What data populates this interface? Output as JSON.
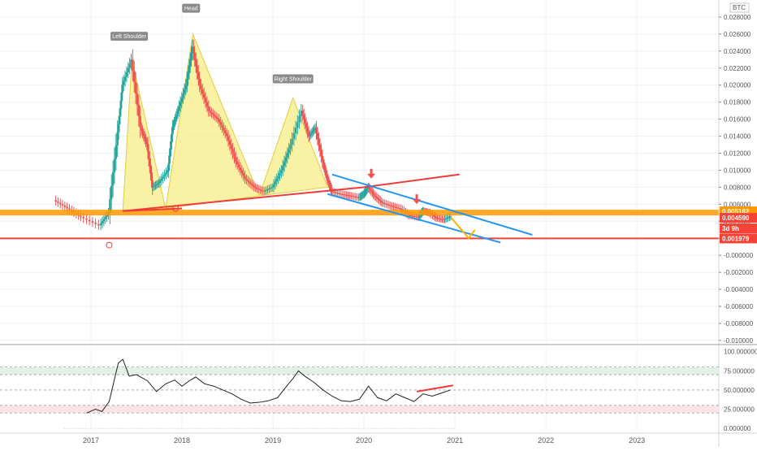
{
  "currency_label": "BTC",
  "colors": {
    "candle_up": "#26a69a",
    "candle_down": "#ef5350",
    "pattern_fill": "#f7ec84",
    "pattern_stroke": "#e0cf3f",
    "neckline": "#ef3b3b",
    "channel": "#2196f3",
    "support_orange": "#ff9800",
    "support_red": "#f44336",
    "rsi_line": "#222222",
    "projection": "#ffb300",
    "grid": "#eef0f3"
  },
  "annotations": {
    "left_shoulder": "Left Shoulder",
    "head": "Head",
    "right_shoulder": "Right Shoulder"
  },
  "price_badges": {
    "orange": "0.005162",
    "current": "0.004590",
    "countdown": "3d 9h",
    "red": "0.001979"
  },
  "chart_data": [
    {
      "type": "line",
      "title": "",
      "xlabel": "",
      "ylabel": "",
      "x_ticks": [
        "2017",
        "2018",
        "2019",
        "2020",
        "2021",
        "2022",
        "2023"
      ],
      "y_ticks": [
        "0.028000",
        "0.026000",
        "0.024000",
        "0.022000",
        "0.020000",
        "0.018000",
        "0.016000",
        "0.014000",
        "0.012000",
        "0.010000",
        "0.008000",
        "0.006000",
        "0.004000",
        "0.002000",
        "-0.000000",
        "-0.002000",
        "-0.004000",
        "-0.006000",
        "-0.008000",
        "-0.010000"
      ],
      "ylim": [
        -0.0103,
        0.03
      ],
      "xlim": [
        2016.0,
        2023.9
      ],
      "grid": true,
      "series": [
        {
          "values": [
            [
              2016.6,
              0.0065
            ],
            [
              2016.75,
              0.0055
            ],
            [
              2016.9,
              0.0045
            ],
            [
              2017.1,
              0.0035
            ],
            [
              2017.2,
              0.005
            ],
            [
              2017.3,
              0.0145
            ],
            [
              2017.35,
              0.02
            ],
            [
              2017.45,
              0.023
            ],
            [
              2017.55,
              0.015
            ],
            [
              2017.62,
              0.013
            ],
            [
              2017.68,
              0.008
            ],
            [
              2017.75,
              0.0085
            ],
            [
              2017.85,
              0.01
            ],
            [
              2017.9,
              0.015
            ],
            [
              2017.96,
              0.017
            ],
            [
              2018.05,
              0.02
            ],
            [
              2018.12,
              0.0245
            ],
            [
              2018.2,
              0.02
            ],
            [
              2018.3,
              0.017
            ],
            [
              2018.4,
              0.016
            ],
            [
              2018.5,
              0.014
            ],
            [
              2018.6,
              0.011
            ],
            [
              2018.7,
              0.009
            ],
            [
              2018.8,
              0.008
            ],
            [
              2018.9,
              0.0075
            ],
            [
              2019.0,
              0.008
            ],
            [
              2019.1,
              0.01
            ],
            [
              2019.2,
              0.013
            ],
            [
              2019.32,
              0.017
            ],
            [
              2019.4,
              0.014
            ],
            [
              2019.47,
              0.015
            ],
            [
              2019.55,
              0.011
            ],
            [
              2019.6,
              0.009
            ],
            [
              2019.65,
              0.0075
            ],
            [
              2019.75,
              0.0072
            ],
            [
              2019.85,
              0.007
            ],
            [
              2019.95,
              0.0068
            ],
            [
              2020.0,
              0.0072
            ],
            [
              2020.05,
              0.008
            ],
            [
              2020.12,
              0.007
            ],
            [
              2020.2,
              0.0062
            ],
            [
              2020.3,
              0.0058
            ],
            [
              2020.4,
              0.0055
            ],
            [
              2020.5,
              0.0047
            ],
            [
              2020.6,
              0.0045
            ],
            [
              2020.65,
              0.0052
            ],
            [
              2020.72,
              0.005
            ],
            [
              2020.8,
              0.0044
            ],
            [
              2020.88,
              0.0042
            ],
            [
              2020.96,
              0.0046
            ]
          ]
        }
      ],
      "levels": {
        "support_orange": 0.005162,
        "current": 0.00459,
        "support_red": 0.001979
      },
      "neckline": [
        [
          2017.35,
          0.0052
        ],
        [
          2018.0,
          0.0055
        ],
        [
          2020.0,
          0.008
        ],
        [
          2021.05,
          0.0095
        ]
      ],
      "channel_upper": [
        [
          2019.65,
          0.0095
        ],
        [
          2021.85,
          0.0024
        ]
      ],
      "channel_lower": [
        [
          2019.6,
          0.0072
        ],
        [
          2021.5,
          0.0015
        ]
      ],
      "projection": [
        [
          2020.96,
          0.0044
        ],
        [
          2021.15,
          0.002
        ],
        [
          2021.22,
          0.003
        ]
      ]
    },
    {
      "type": "line",
      "title": "",
      "x_ticks": [
        "2017",
        "2018",
        "2019",
        "2020",
        "2021",
        "2022",
        "2023"
      ],
      "y_ticks": [
        "100.000000",
        "75.000000",
        "50.000000",
        "25.000000",
        "0.000000"
      ],
      "ylim": [
        -3,
        105
      ],
      "xlim": [
        2016.0,
        2023.9
      ],
      "bands": {
        "overbought": [
          70,
          80
        ],
        "oversold": [
          20,
          30
        ]
      },
      "series": [
        {
          "values": [
            [
              2016.95,
              20
            ],
            [
              2017.05,
              25
            ],
            [
              2017.12,
              22
            ],
            [
              2017.2,
              35
            ],
            [
              2017.3,
              85
            ],
            [
              2017.35,
              90
            ],
            [
              2017.42,
              68
            ],
            [
              2017.5,
              70
            ],
            [
              2017.62,
              62
            ],
            [
              2017.72,
              48
            ],
            [
              2017.82,
              58
            ],
            [
              2017.92,
              63
            ],
            [
              2018.0,
              55
            ],
            [
              2018.08,
              62
            ],
            [
              2018.15,
              67
            ],
            [
              2018.25,
              58
            ],
            [
              2018.35,
              55
            ],
            [
              2018.45,
              50
            ],
            [
              2018.55,
              45
            ],
            [
              2018.65,
              38
            ],
            [
              2018.75,
              33
            ],
            [
              2018.85,
              34
            ],
            [
              2018.95,
              36
            ],
            [
              2019.05,
              40
            ],
            [
              2019.15,
              55
            ],
            [
              2019.22,
              65
            ],
            [
              2019.28,
              75
            ],
            [
              2019.35,
              68
            ],
            [
              2019.45,
              60
            ],
            [
              2019.55,
              50
            ],
            [
              2019.65,
              42
            ],
            [
              2019.75,
              36
            ],
            [
              2019.85,
              35
            ],
            [
              2019.95,
              38
            ],
            [
              2020.05,
              55
            ],
            [
              2020.15,
              40
            ],
            [
              2020.25,
              36
            ],
            [
              2020.35,
              45
            ],
            [
              2020.45,
              40
            ],
            [
              2020.55,
              35
            ],
            [
              2020.65,
              45
            ],
            [
              2020.75,
              42
            ],
            [
              2020.85,
              46
            ],
            [
              2020.95,
              50
            ]
          ]
        }
      ],
      "trendline": [
        [
          2020.58,
          48
        ],
        [
          2020.98,
          56
        ]
      ]
    }
  ]
}
